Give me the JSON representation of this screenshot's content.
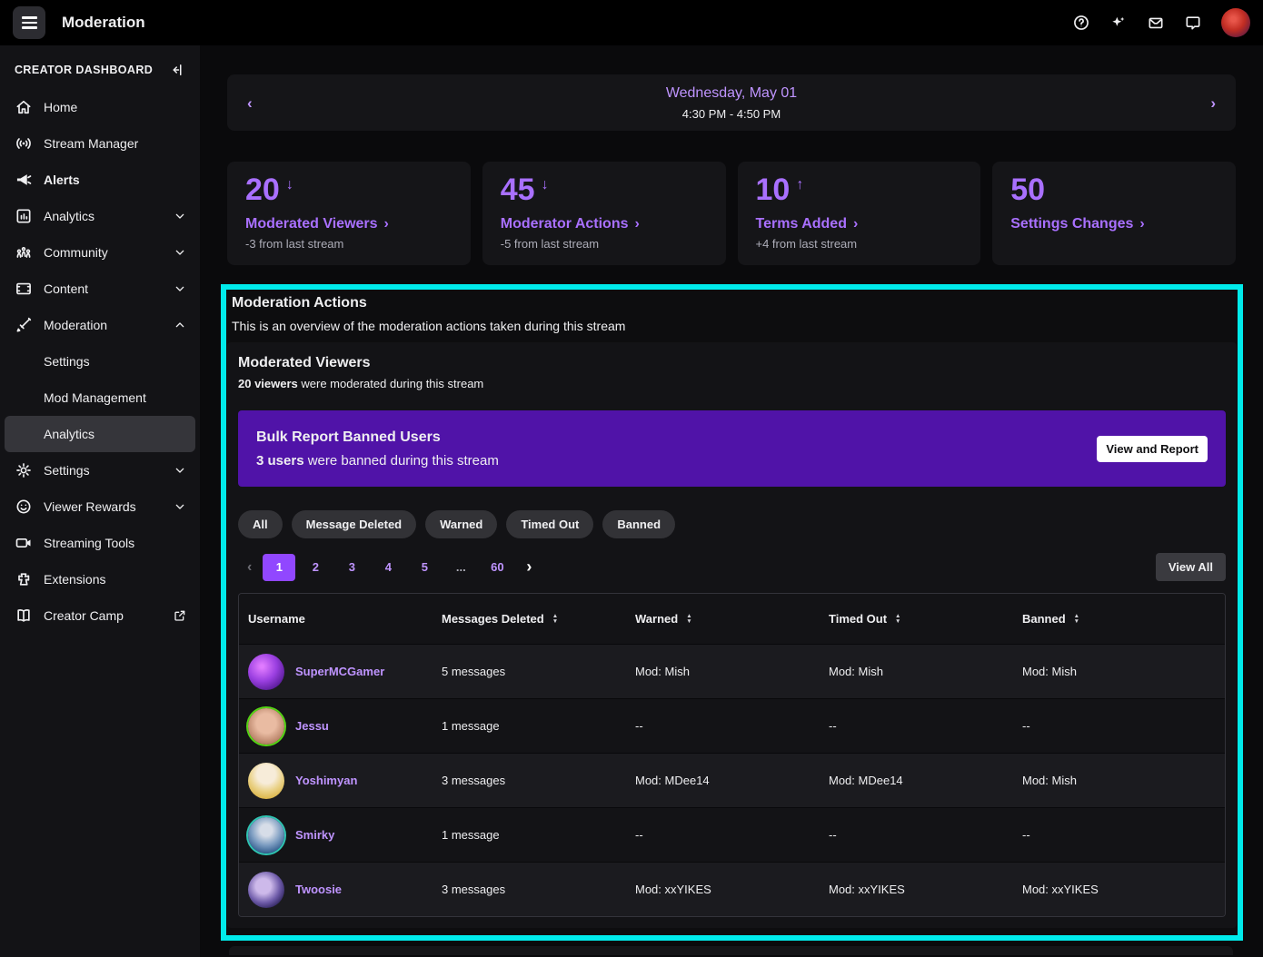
{
  "colors": {
    "accent": "#a970ff",
    "link": "#bf94ff",
    "active": "#9147ff",
    "banner": "#5013a8",
    "cyan": "#00ebeb"
  },
  "topbar": {
    "title": "Moderation",
    "icons": [
      "menu-icon",
      "help-icon",
      "sparkle-icon",
      "inbox-icon",
      "chat-icon",
      "avatar"
    ]
  },
  "sidebar": {
    "header": "CREATOR DASHBOARD",
    "items": [
      {
        "label": "Home",
        "icon": "home"
      },
      {
        "label": "Stream Manager",
        "icon": "broadcast"
      },
      {
        "label": "Alerts",
        "icon": "megaphone",
        "bold": true
      },
      {
        "label": "Analytics",
        "icon": "chart",
        "chevron": "down"
      },
      {
        "label": "Community",
        "icon": "people",
        "chevron": "down"
      },
      {
        "label": "Content",
        "icon": "frame",
        "chevron": "down"
      },
      {
        "label": "Moderation",
        "icon": "sword",
        "chevron": "up"
      },
      {
        "label": "Settings",
        "sub": true
      },
      {
        "label": "Mod Management",
        "sub": true
      },
      {
        "label": "Analytics",
        "sub": true,
        "selected": true
      },
      {
        "label": "Settings",
        "icon": "gear",
        "chevron": "down"
      },
      {
        "label": "Viewer Rewards",
        "icon": "smiley",
        "chevron": "down"
      },
      {
        "label": "Streaming Tools",
        "icon": "camera"
      },
      {
        "label": "Extensions",
        "icon": "puzzle"
      },
      {
        "label": "Creator Camp",
        "icon": "book",
        "external": true
      }
    ]
  },
  "datenav": {
    "date": "Wednesday, May 01",
    "time": "4:30 PM - 4:50 PM"
  },
  "stats": [
    {
      "value": "20",
      "trend": "down",
      "label": "Moderated Viewers",
      "delta": "-3 from last stream"
    },
    {
      "value": "45",
      "trend": "down",
      "label": "Moderator Actions",
      "delta": "-5 from last stream"
    },
    {
      "value": "10",
      "trend": "up",
      "label": "Terms Added",
      "delta": "+4 from last stream"
    },
    {
      "value": "50",
      "trend": "",
      "label": "Settings Changes",
      "delta": ""
    }
  ],
  "moderation_section": {
    "title": "Moderation Actions",
    "subtitle": "This is an overview of the moderation actions taken during this stream",
    "panel": {
      "title": "Moderated Viewers",
      "highlight": "20 viewers",
      "text": " were moderated during this stream"
    },
    "banner": {
      "title": "Bulk Report Banned Users",
      "highlight": "3 users",
      "text": " were banned during this stream",
      "button_label": "View and Report"
    },
    "filters": [
      "All",
      "Message Deleted",
      "Warned",
      "Timed Out",
      "Banned"
    ],
    "pagination": {
      "pages": [
        "1",
        "2",
        "3",
        "4",
        "5",
        "...",
        "60"
      ],
      "active_page": "1",
      "view_all_label": "View All"
    },
    "table": {
      "columns": [
        {
          "label": "Username",
          "sortable": false
        },
        {
          "label": "Messages Deleted",
          "sortable": true
        },
        {
          "label": "Warned",
          "sortable": true
        },
        {
          "label": "Timed Out",
          "sortable": true
        },
        {
          "label": "Banned",
          "sortable": true
        }
      ],
      "rows": [
        {
          "username": "SuperMCGamer",
          "messages_deleted": "5 messages",
          "warned": "Mod: Mish",
          "timed_out": "Mod: Mish",
          "banned": "Mod: Mish"
        },
        {
          "username": "Jessu",
          "messages_deleted": "1 message",
          "warned": "--",
          "timed_out": "--",
          "banned": "--"
        },
        {
          "username": "Yoshimyan",
          "messages_deleted": "3 messages",
          "warned": "Mod: MDee14",
          "timed_out": "Mod: MDee14",
          "banned": "Mod: Mish"
        },
        {
          "username": "Smirky",
          "messages_deleted": "1 message",
          "warned": "--",
          "timed_out": "--",
          "banned": "--"
        },
        {
          "username": "Twoosie",
          "messages_deleted": "3 messages",
          "warned": "Mod: xxYIKES",
          "timed_out": "Mod: xxYIKES",
          "banned": "Mod: xxYIKES"
        }
      ]
    }
  }
}
